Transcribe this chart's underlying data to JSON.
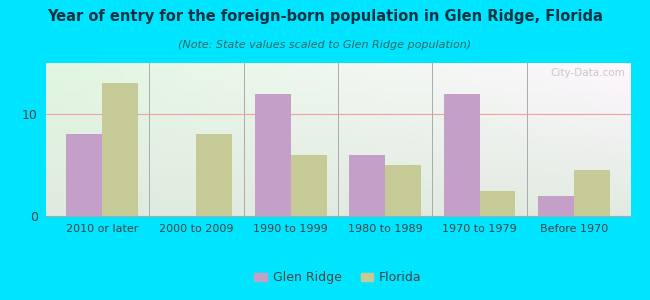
{
  "title": "Year of entry for the foreign-born population in Glen Ridge, Florida",
  "subtitle": "(Note: State values scaled to Glen Ridge population)",
  "categories": [
    "2010 or later",
    "2000 to 2009",
    "1990 to 1999",
    "1980 to 1989",
    "1970 to 1979",
    "Before 1970"
  ],
  "glen_ridge": [
    8,
    0,
    12,
    6,
    12,
    2
  ],
  "florida": [
    13,
    8,
    6,
    5,
    2.5,
    4.5
  ],
  "glen_ridge_color": "#c4a0c8",
  "florida_color": "#c5ca96",
  "bg_outer": "#00e5ff",
  "ylim": [
    0,
    15
  ],
  "yticks": [
    0,
    10
  ],
  "bar_width": 0.38,
  "legend_glen_ridge": "Glen Ridge",
  "legend_florida": "Florida",
  "watermark": "City-Data.com",
  "title_color": "#003344",
  "subtitle_color": "#336666",
  "grid_color": "#f0a0a0",
  "separator_color": "#aaaaaa",
  "tick_color": "#444444"
}
